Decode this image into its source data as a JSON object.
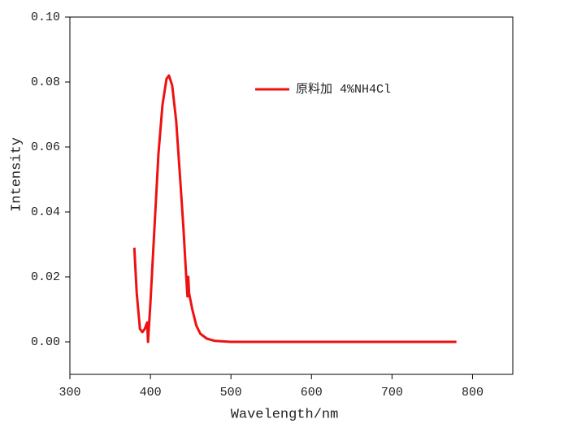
{
  "chart_data": {
    "type": "line",
    "xlabel": "Wavelength/nm",
    "ylabel": "Intensity",
    "x": [
      380,
      383,
      387,
      390,
      393,
      396,
      397,
      398,
      400,
      405,
      410,
      415,
      420,
      423,
      427,
      432,
      437,
      441,
      444,
      446,
      447,
      448,
      452,
      457,
      462,
      470,
      480,
      500,
      550,
      600,
      700,
      780
    ],
    "series": [
      {
        "name": "原料加 4%NH4Cl",
        "color": "#ee1111",
        "values": [
          0.029,
          0.015,
          0.004,
          0.003,
          0.004,
          0.006,
          0.0,
          0.004,
          0.012,
          0.035,
          0.058,
          0.073,
          0.081,
          0.082,
          0.079,
          0.068,
          0.05,
          0.035,
          0.022,
          0.014,
          0.02,
          0.015,
          0.01,
          0.005,
          0.0025,
          0.001,
          0.0003,
          0.0,
          0.0,
          0.0,
          0.0,
          0.0
        ]
      }
    ],
    "xlim": [
      300,
      850
    ],
    "xticks": [
      300,
      400,
      500,
      600,
      700,
      800
    ],
    "ylim": [
      -0.01,
      0.1
    ],
    "yticks": [
      {
        "value": 0,
        "label": "0.00"
      },
      {
        "value": 0.02,
        "label": "0.02"
      },
      {
        "value": 0.04,
        "label": "0.04"
      },
      {
        "value": 0.06,
        "label": "0.06"
      },
      {
        "value": 0.08,
        "label": "0.08"
      },
      {
        "value": 0.1,
        "label": "0.10"
      }
    ],
    "legend": "top-center"
  }
}
